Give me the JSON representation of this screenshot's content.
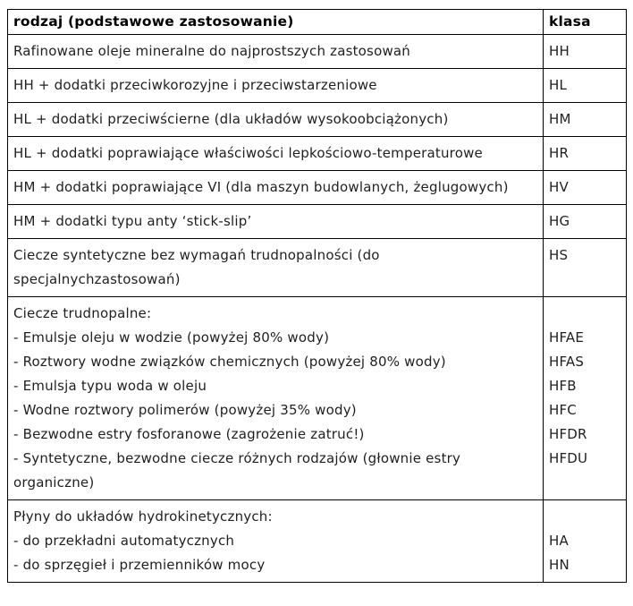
{
  "colors": {
    "background": "#ffffff",
    "border": "#000000",
    "text": "#1f1f1f"
  },
  "table": {
    "header": {
      "rodzaj": "rodzaj (podstawowe zastosowanie)",
      "klasa": "klasa"
    },
    "rows": [
      {
        "rodzaj": "Rafinowane oleje mineralne do najprostszych zastosowań",
        "klasa": "HH"
      },
      {
        "rodzaj": "HH + dodatki przeciwkorozyjne i przeciwstarzeniowe",
        "klasa": "HL"
      },
      {
        "rodzaj": "HL + dodatki przeciwścierne (dla układów wysokoobciążonych)",
        "klasa": "HM"
      },
      {
        "rodzaj": "HL + dodatki poprawiające właściwości lepkościowo-temperaturowe",
        "klasa": "HR"
      },
      {
        "rodzaj": "HM + dodatki poprawiające VI (dla maszyn budowlanych, żeglugowych)",
        "klasa": "HV"
      },
      {
        "rodzaj": "HM + dodatki typu anty ‘stick-slip’",
        "klasa": "HG"
      },
      {
        "rodzaj": "Ciecze syntetyczne bez wymagań trudnopalności (do\nspecjalnychzastosowań)",
        "klasa": "HS"
      },
      {
        "rodzaj": "Ciecze trudnopalne:\n- Emulsje oleju w wodzie (powyżej 80% wody)\n- Roztwory wodne związków chemicznych (powyżej 80% wody)\n- Emulsja typu woda w oleju\n- Wodne roztwory polimerów (powyżej 35% wody)\n- Bezwodne estry fosforanowe (zagrożenie zatruć!)\n- Syntetyczne, bezwodne ciecze różnych rodzajów (głownie estry\norganiczne)",
        "klasa": " \nHFAE\nHFAS\nHFB\nHFC\nHFDR\nHFDU"
      },
      {
        "rodzaj": "Płyny do układów hydrokinetycznych:\n- do przekładni automatycznych\n- do sprzęgieł i przemienników mocy",
        "klasa": " \nHA\nHN"
      }
    ]
  }
}
